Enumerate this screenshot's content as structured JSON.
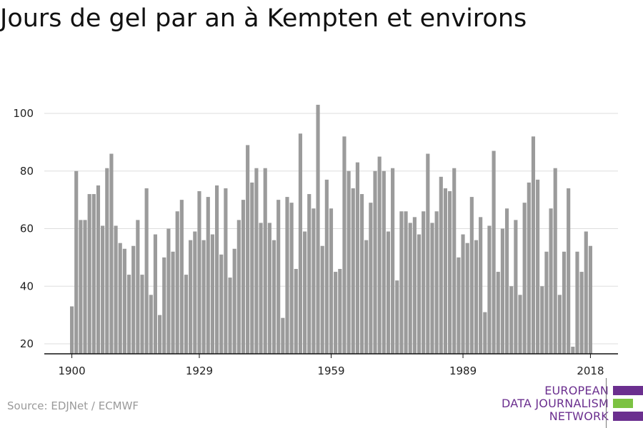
{
  "title": "Jours de gel par an à Kempten et environs",
  "source": "Source: EDJNet / ECMWF",
  "logo": {
    "line1": "EUROPEAN",
    "line2": "DATA JOURNALISM",
    "line3": "NETWORK",
    "colors": {
      "purple": "#6b2f8f",
      "green": "#7cc242"
    }
  },
  "colors": {
    "bar": "#9b9b9b",
    "grid": "#dddddd",
    "axis": "#111111"
  },
  "chart_data": {
    "type": "bar",
    "title": "Jours de gel par an à Kempten et environs",
    "xlabel": "",
    "ylabel": "",
    "ylim": [
      16,
      104
    ],
    "yticks": [
      20,
      40,
      60,
      80,
      100
    ],
    "xticks": [
      1900,
      1929,
      1959,
      1989,
      2018
    ],
    "grid": true,
    "x": [
      1900,
      1901,
      1902,
      1903,
      1904,
      1905,
      1906,
      1907,
      1908,
      1909,
      1910,
      1911,
      1912,
      1913,
      1914,
      1915,
      1916,
      1917,
      1918,
      1919,
      1920,
      1921,
      1922,
      1923,
      1924,
      1925,
      1926,
      1927,
      1928,
      1929,
      1930,
      1931,
      1932,
      1933,
      1934,
      1935,
      1936,
      1937,
      1938,
      1939,
      1940,
      1941,
      1942,
      1943,
      1944,
      1945,
      1946,
      1947,
      1948,
      1949,
      1950,
      1951,
      1952,
      1953,
      1954,
      1955,
      1956,
      1957,
      1958,
      1959,
      1960,
      1961,
      1962,
      1963,
      1964,
      1965,
      1966,
      1967,
      1968,
      1969,
      1970,
      1971,
      1972,
      1973,
      1974,
      1975,
      1976,
      1977,
      1978,
      1979,
      1980,
      1981,
      1982,
      1983,
      1984,
      1985,
      1986,
      1987,
      1988,
      1989,
      1990,
      1991,
      1992,
      1993,
      1994,
      1995,
      1996,
      1997,
      1998,
      1999,
      2000,
      2001,
      2002,
      2003,
      2004,
      2005,
      2006,
      2007,
      2008,
      2009,
      2010,
      2011,
      2012,
      2013,
      2014,
      2015,
      2016,
      2017,
      2018
    ],
    "values": [
      33,
      80,
      63,
      63,
      72,
      72,
      75,
      61,
      81,
      86,
      61,
      55,
      53,
      44,
      54,
      63,
      44,
      74,
      37,
      58,
      30,
      50,
      60,
      52,
      66,
      70,
      44,
      56,
      59,
      73,
      56,
      71,
      58,
      75,
      51,
      74,
      43,
      53,
      63,
      70,
      89,
      76,
      81,
      62,
      81,
      62,
      56,
      70,
      29,
      71,
      69,
      46,
      93,
      59,
      72,
      67,
      103,
      54,
      77,
      67,
      45,
      46,
      92,
      80,
      74,
      83,
      72,
      56,
      69,
      80,
      85,
      80,
      59,
      81,
      42,
      66,
      66,
      62,
      64,
      58,
      66,
      86,
      62,
      66,
      78,
      74,
      73,
      81,
      50,
      58,
      55,
      71,
      56,
      64,
      31,
      61,
      87,
      45,
      60,
      67,
      40,
      63,
      37,
      69,
      76,
      92,
      77,
      40,
      52,
      67,
      81,
      37,
      52,
      74,
      19,
      52,
      45,
      59,
      54
    ]
  }
}
